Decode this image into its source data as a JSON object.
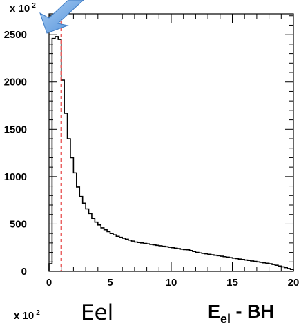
{
  "chart_data": {
    "type": "histogram",
    "y_multiplier_label": {
      "text": "x 10",
      "exp": "2"
    },
    "x_multiplier_label": {
      "text": "x 10",
      "exp": "2"
    },
    "x_label_center": "Eel",
    "x_title": {
      "main": "E",
      "sub": "el",
      "rest": " - BH"
    },
    "xlim": [
      0,
      20
    ],
    "ylim": [
      0,
      2720
    ],
    "x_ticks": [
      0,
      5,
      10,
      15,
      20
    ],
    "y_ticks": [
      0,
      500,
      1000,
      1500,
      2000,
      2500
    ],
    "x_tick_labels": [
      "0",
      "5",
      "10",
      "15",
      "20"
    ],
    "y_tick_labels": [
      "0",
      "500",
      "1000",
      "1500",
      "2000",
      "2500"
    ],
    "bin_width": 0.25,
    "values": [
      80,
      2460,
      2480,
      2450,
      2020,
      1670,
      1400,
      1200,
      1040,
      890,
      790,
      720,
      660,
      610,
      560,
      520,
      490,
      460,
      440,
      420,
      400,
      385,
      370,
      360,
      350,
      340,
      330,
      320,
      310,
      305,
      300,
      295,
      290,
      285,
      280,
      275,
      270,
      265,
      260,
      255,
      250,
      245,
      240,
      235,
      230,
      228,
      220,
      210,
      200,
      195,
      190,
      185,
      180,
      175,
      170,
      165,
      160,
      155,
      150,
      145,
      140,
      135,
      130,
      125,
      120,
      115,
      110,
      105,
      100,
      95,
      90,
      85,
      80,
      72,
      64,
      56,
      48,
      40,
      30,
      20
    ],
    "cut_line_x": 1.0,
    "cut_line_color": "#e02020",
    "arrow_color": "#6fa8e6",
    "histogram_color": "#000000"
  }
}
